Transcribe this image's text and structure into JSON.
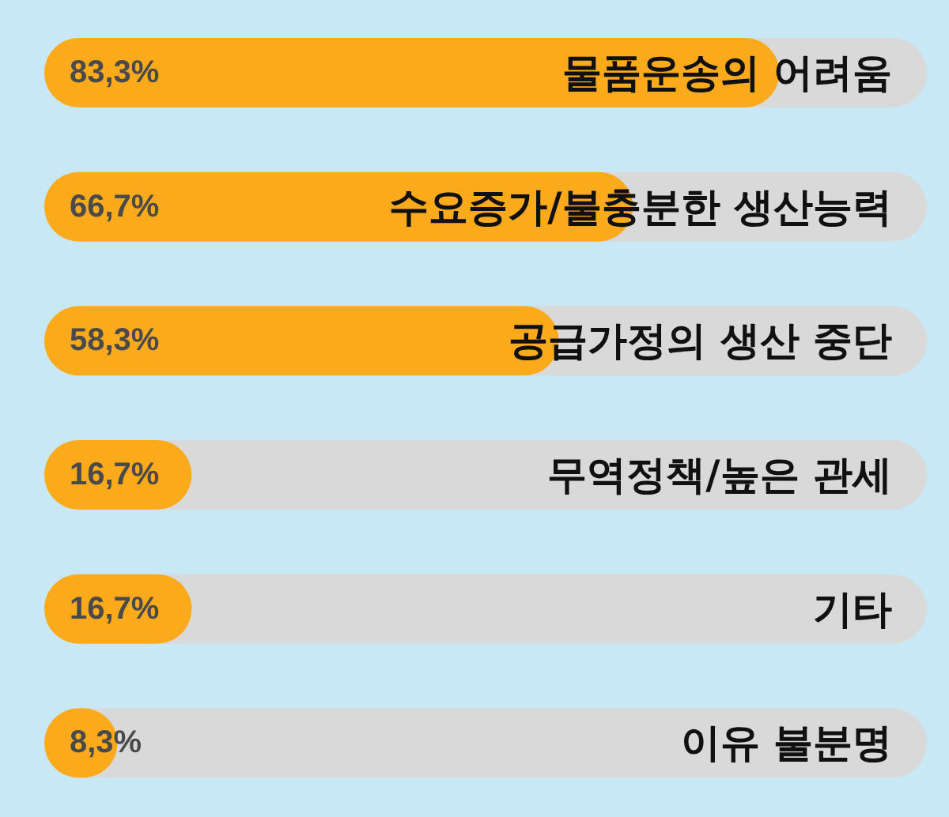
{
  "chart_data": {
    "type": "bar",
    "orientation": "horizontal",
    "categories": [
      "물품운송의 어려움",
      "수요증가/불충분한 생산능력",
      "공급가정의 생산 중단",
      "무역정책/높은 관세",
      "기타",
      "이유 불분명"
    ],
    "values": [
      83.3,
      66.7,
      58.3,
      16.7,
      16.7,
      8.3
    ],
    "value_labels": [
      "83,3%",
      "66,7%",
      "58,3%",
      "16,7%",
      "16,7%",
      "8,3%"
    ],
    "color": "#fbaa1b",
    "xlim": [
      0,
      100
    ],
    "tick_labels": false,
    "grid": false
  }
}
